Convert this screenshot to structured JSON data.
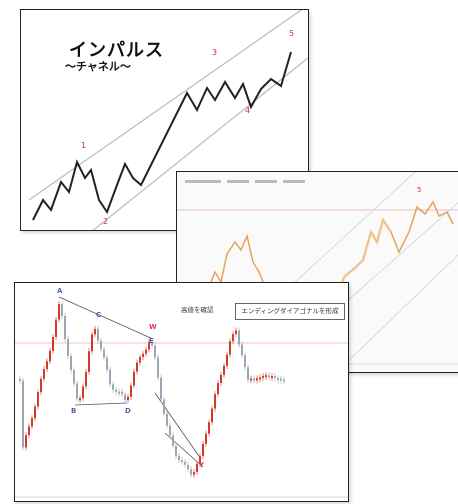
{
  "impulse_card": {
    "title": "インパルス",
    "subtitle": "〜チャネル〜",
    "wave_labels": [
      "1",
      "2",
      "3",
      "4",
      "5"
    ]
  },
  "channel_card": {
    "header_text": "",
    "wave_labels": [
      "5"
    ]
  },
  "elliott_card": {
    "peak_label": "高値を確認",
    "callout_label": "エンディングダイアゴナルを形成",
    "point_labels": [
      "A",
      "C",
      "B",
      "D",
      "E",
      "W",
      "Y"
    ],
    "colors": {
      "up_candle": "#d33a2c",
      "down_candle": "#9aa8b5",
      "label": "#4e63b7",
      "accent": "#d63b6b"
    }
  }
}
